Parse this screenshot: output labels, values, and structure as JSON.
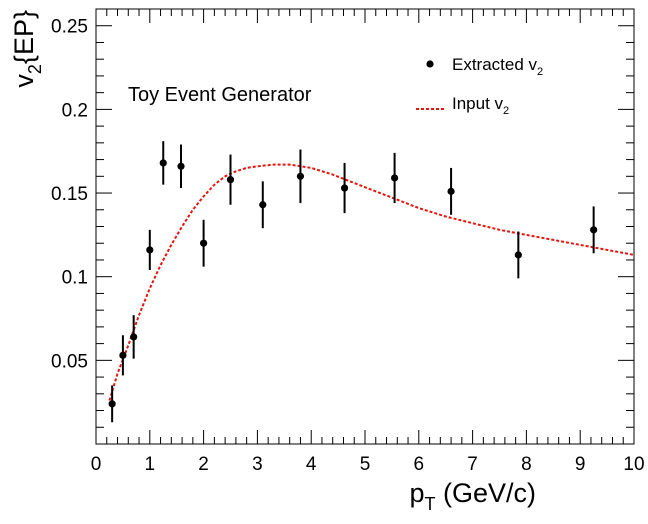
{
  "chart_data": {
    "type": "scatter",
    "annotation": "Toy Event Generator",
    "xlabel": {
      "main": "p",
      "sub": "T",
      "rest": " (GeV/c)"
    },
    "ylabel": {
      "main": "v",
      "sub": "2",
      "rest": "{EP}"
    },
    "xlim": [
      0,
      10
    ],
    "ylim": [
      0,
      0.26
    ],
    "xticks": [
      0,
      1,
      2,
      3,
      4,
      5,
      6,
      7,
      8,
      9,
      10
    ],
    "yticks": [
      0.05,
      0.1,
      0.15,
      0.2,
      0.25
    ],
    "grid": false,
    "legend_position": "top-right",
    "legend": [
      {
        "text": "Extracted v",
        "sub": "2",
        "style": "marker",
        "color": "#000000"
      },
      {
        "text": "Input v",
        "sub": "2",
        "style": "dashed-line",
        "color": "#e8140f"
      }
    ],
    "series": [
      {
        "name": "Extracted v2",
        "kind": "points-with-errors",
        "color": "#000000",
        "x": [
          0.3,
          0.5,
          0.7,
          1.0,
          1.25,
          1.58,
          2.0,
          2.5,
          3.1,
          3.8,
          4.62,
          5.55,
          6.6,
          7.85,
          9.25
        ],
        "y": [
          0.024,
          0.053,
          0.064,
          0.116,
          0.168,
          0.166,
          0.12,
          0.158,
          0.143,
          0.16,
          0.153,
          0.159,
          0.151,
          0.113,
          0.128
        ],
        "err": [
          0.011,
          0.012,
          0.013,
          0.012,
          0.013,
          0.013,
          0.014,
          0.015,
          0.014,
          0.016,
          0.015,
          0.015,
          0.014,
          0.014,
          0.014
        ]
      },
      {
        "name": "Input v2",
        "kind": "dashed-curve",
        "color": "#e8140f",
        "x": [
          0.25,
          0.4,
          0.6,
          0.8,
          1.0,
          1.2,
          1.4,
          1.6,
          1.8,
          2.0,
          2.2,
          2.4,
          2.6,
          2.8,
          3.0,
          3.3,
          3.6,
          4.0,
          4.4,
          4.8,
          5.2,
          5.6,
          6.0,
          6.5,
          7.0,
          7.5,
          8.0,
          8.5,
          9.0,
          9.5,
          10.0
        ],
        "y": [
          0.026,
          0.042,
          0.059,
          0.077,
          0.093,
          0.107,
          0.119,
          0.13,
          0.14,
          0.148,
          0.155,
          0.16,
          0.163,
          0.165,
          0.166,
          0.167,
          0.167,
          0.165,
          0.161,
          0.156,
          0.151,
          0.146,
          0.141,
          0.136,
          0.132,
          0.128,
          0.125,
          0.122,
          0.119,
          0.116,
          0.113
        ]
      }
    ]
  }
}
